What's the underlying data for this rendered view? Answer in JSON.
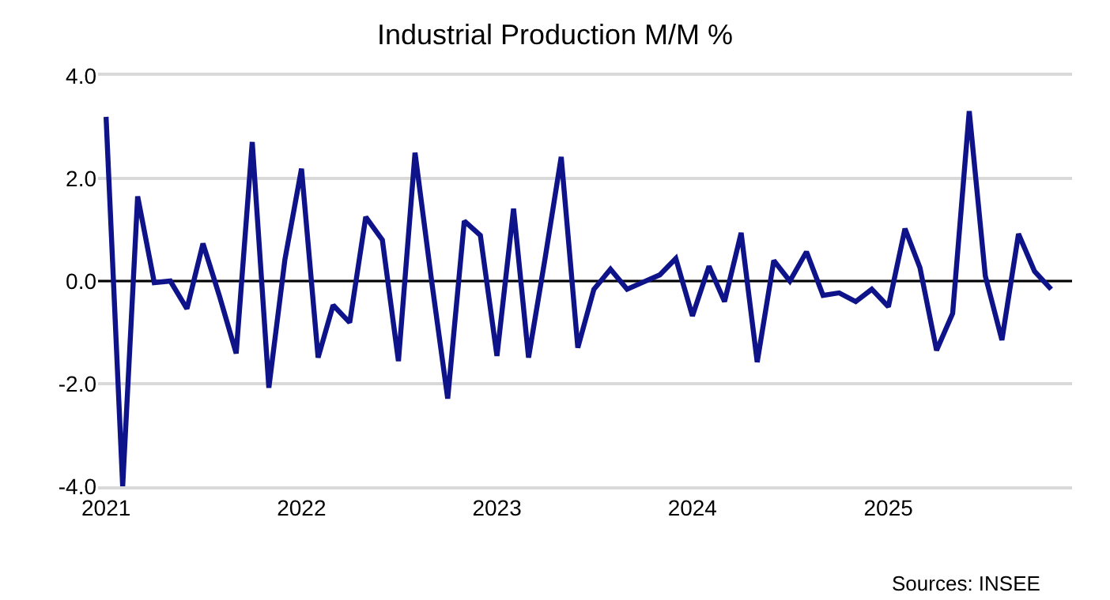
{
  "chart_data": {
    "type": "line",
    "title": "Industrial Production M/M %",
    "x": [
      "2021-01",
      "2021-02",
      "2021-03",
      "2021-04",
      "2021-05",
      "2021-06",
      "2021-07",
      "2021-08",
      "2021-09",
      "2021-10",
      "2021-11",
      "2021-12",
      "2022-01",
      "2022-02",
      "2022-03",
      "2022-04",
      "2022-05",
      "2022-06",
      "2022-07",
      "2022-08",
      "2022-09",
      "2022-10",
      "2022-11",
      "2022-12",
      "2023-01",
      "2023-02",
      "2023-03",
      "2023-04",
      "2023-05",
      "2023-06",
      "2023-07",
      "2023-08",
      "2023-09",
      "2023-10",
      "2023-11",
      "2023-12",
      "2024-01",
      "2024-02",
      "2024-03",
      "2024-04",
      "2024-05",
      "2024-06",
      "2024-07",
      "2024-08",
      "2024-09",
      "2024-10",
      "2024-11",
      "2024-12",
      "2025-01",
      "2025-02",
      "2025-03",
      "2025-04",
      "2025-05",
      "2025-06",
      "2025-07",
      "2025-08",
      "2025-09",
      "2025-10",
      "2025-11"
    ],
    "series": [
      {
        "color": "#0f138a",
        "values": [
          3.2,
          -4.0,
          1.65,
          -0.03,
          0.0,
          -0.54,
          0.73,
          -0.3,
          -1.41,
          2.71,
          -2.08,
          0.42,
          2.19,
          -1.49,
          -0.47,
          -0.81,
          1.25,
          0.8,
          -1.56,
          2.5,
          0.0,
          -2.29,
          1.17,
          0.89,
          -1.46,
          1.41,
          -1.49,
          0.45,
          2.42,
          -1.3,
          -0.16,
          0.23,
          -0.16,
          -0.02,
          0.12,
          0.44,
          -0.68,
          0.29,
          -0.4,
          0.94,
          -1.58,
          0.4,
          0.0,
          0.57,
          -0.28,
          -0.23,
          -0.4,
          -0.16,
          -0.5,
          1.02,
          0.26,
          -1.35,
          -0.63,
          3.31,
          0.1,
          -1.15,
          0.92,
          0.19,
          -0.16
        ]
      }
    ],
    "xlim": [
      "2020-12-17",
      "2025-12-10"
    ],
    "xticks": [
      {
        "value": "2021-01",
        "label": "2021"
      },
      {
        "value": "2022-01",
        "label": "2022"
      },
      {
        "value": "2023-01",
        "label": "2023"
      },
      {
        "value": "2024-01",
        "label": "2024"
      },
      {
        "value": "2025-01",
        "label": "2025"
      }
    ],
    "ylim": [
      -4.0,
      4.0
    ],
    "yticks": [
      {
        "value": -4,
        "label": "-4.0"
      },
      {
        "value": -2,
        "label": "-2.0"
      },
      {
        "value": 0,
        "label": "0.0"
      },
      {
        "value": 2,
        "label": "2.0"
      },
      {
        "value": 4,
        "label": "4.0"
      }
    ],
    "grid": "y",
    "marker": "none",
    "line_style": "solid",
    "ref_lines": [
      {
        "axis": "y",
        "value": 0,
        "label": null,
        "color": "#000000"
      }
    ],
    "annotations": [
      "Sources: INSEE"
    ]
  }
}
